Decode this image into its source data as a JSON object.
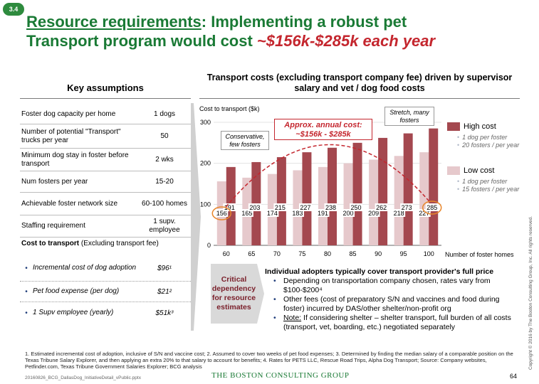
{
  "section_badge": "3.4",
  "title": {
    "part1": "Resource requirements",
    "part2": ": Implementing a robust pet",
    "part3": "Transport program would cost ",
    "highlight": "~$156k-$285k each year"
  },
  "assumptions": {
    "header": "Key assumptions",
    "rows": [
      {
        "label": "Foster dog capacity per home",
        "value": "1 dogs"
      },
      {
        "label": "Number of potential \"Transport\" trucks per year",
        "value": "50"
      },
      {
        "label": "Minimum dog stay in foster before transport",
        "value": "2 wks"
      },
      {
        "label": "Num fosters per year",
        "value": "15-20"
      },
      {
        "label": "Achievable foster network size",
        "value": "60-100 homes"
      },
      {
        "label": "Staffing requirement",
        "value": "1 supv. employee"
      }
    ],
    "cost_label_bold": "Cost to transport",
    "cost_label_rest": " (Excluding transport fee)",
    "cost_items": [
      {
        "label": "Incremental cost of dog adoption",
        "value": "$96¹"
      },
      {
        "label": "Pet food expense (per dog)",
        "value": "$21²"
      },
      {
        "label": "1 Supv employee (yearly)",
        "value": "$51k³"
      }
    ]
  },
  "chart_header": "Transport costs (excluding transport company fee) driven by supervisor salary and vet / dog food costs",
  "chart_data": {
    "type": "bar",
    "ylabel": "Cost to transport ($k)",
    "xlabel": "Number of foster homes",
    "ylim": [
      0,
      300
    ],
    "yticks": [
      0,
      100,
      200,
      300
    ],
    "categories": [
      "60",
      "65",
      "70",
      "75",
      "80",
      "85",
      "90",
      "95",
      "100"
    ],
    "series": [
      {
        "name": "Low cost",
        "color": "#e6c9cc",
        "values": [
          156,
          165,
          174,
          183,
          191,
          200,
          209,
          218,
          227
        ]
      },
      {
        "name": "High cost",
        "color": "#a4484f",
        "values": [
          191,
          203,
          215,
          227,
          238,
          250,
          262,
          273,
          285
        ]
      }
    ],
    "legend": {
      "high": {
        "label": "High cost",
        "bullets": [
          "1 dog per foster",
          "20 fosters / per year"
        ]
      },
      "low": {
        "label": "Low cost",
        "bullets": [
          "1 dog per foster",
          "15 fosters / per year"
        ]
      }
    },
    "annotations": {
      "conservative": "Conservative, few fosters",
      "stretch": "Stretch, many fosters",
      "approx_line1": "Approx. annual cost:",
      "approx_line2": "~$156k - $285k"
    }
  },
  "critical_box": "Critical dependency for resource estimates",
  "notes": {
    "header": "Individual adopters typically cover transport provider's full price",
    "items": [
      {
        "text": "Depending on transportation company chosen, rates vary from $100-$200⁴"
      },
      {
        "text": "Other fees (cost of preparatory S/N and vaccines and food during foster) incurred by DAS/other shelter/non-profit org"
      },
      {
        "underline": "Note:",
        "text": " If considering shelter – shelter transport, full burden of all costs (transport, vet, boarding, etc.) negotiated separately"
      }
    ]
  },
  "footnote": "1. Estimated incremental cost of adoption, inclusive of S/N and vaccine cost; 2. Assumed to cover two weeks of pet food expenses; 3. Determined by finding the median salary of a comparable position on the Texas Tribune Salary Explorer, and then applying an extra 20% to that salary to account for benefits; 4. Rates for PETS LLC, Rescue Road Trips, Alpha Dog Transport; Source: Company websites, Petfinder.com, Texas Tribune Government Salaries Explorer; BCG analysis",
  "filename": "20160826_BCG_DallasDog_InitiativeDetail_vPublic.pptx",
  "brand": "THE BOSTON CONSULTING GROUP",
  "page_number": "64",
  "copyright": "Copyright © 2016 by The Boston Consulting Group, Inc. All rights reserved.",
  "colors": {
    "title_green": "#1a7a35",
    "accent_red": "#c4262e",
    "bar_high": "#a4484f",
    "bar_low": "#e6c9cc",
    "circle_orange": "#e8862a"
  }
}
